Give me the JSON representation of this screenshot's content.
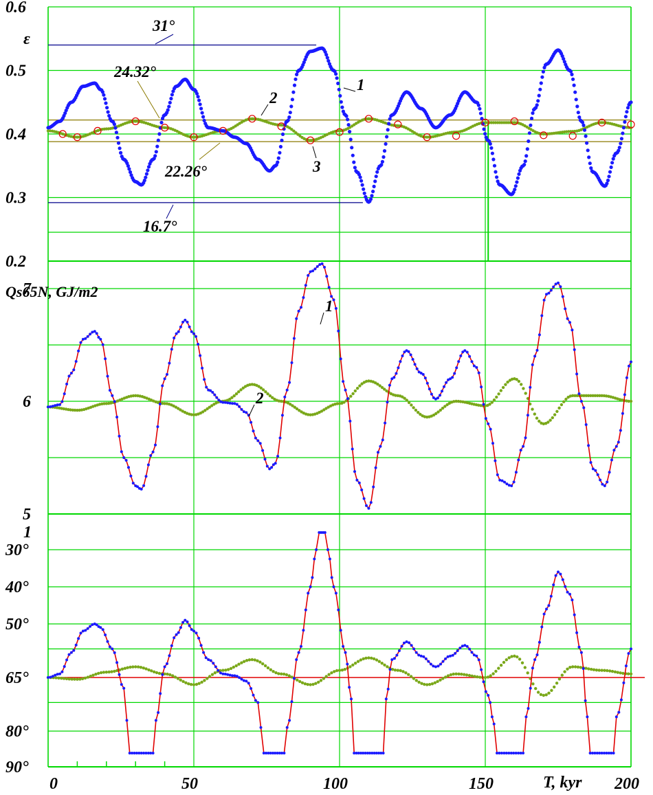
{
  "colors": {
    "grid": "#00d800",
    "curve1": "#1a1aff",
    "curve1_line": "#e00000",
    "curve2": "#7aa81a",
    "curve3_marker": "#e00000",
    "ref_line_red": "#e00000",
    "leader_blue": "#00008b",
    "leader_olive": "#8b7a00"
  },
  "chart_data": [
    {
      "type": "line",
      "panel": "top",
      "ylabel": "ε",
      "y_ticks": [
        "0.6",
        "0.5",
        "0.4",
        "0.3",
        "0.2"
      ],
      "ylim": [
        0.2,
        0.6
      ],
      "xlim": [
        0,
        200
      ],
      "grid": true,
      "series": [
        {
          "name": "1",
          "x": [
            0,
            4,
            8,
            12,
            16,
            18,
            22,
            26,
            30,
            32,
            36,
            40,
            44,
            47,
            50,
            55,
            60,
            64,
            68,
            72,
            76,
            78,
            82,
            86,
            90,
            94,
            98,
            102,
            106,
            110,
            114,
            118,
            123,
            128,
            133,
            138,
            143,
            147,
            151,
            155,
            159,
            163,
            167,
            171,
            175,
            179,
            183,
            187,
            191,
            195,
            200
          ],
          "values": [
            0.41,
            0.42,
            0.45,
            0.475,
            0.48,
            0.47,
            0.42,
            0.36,
            0.325,
            0.32,
            0.36,
            0.43,
            0.475,
            0.486,
            0.47,
            0.41,
            0.405,
            0.395,
            0.385,
            0.36,
            0.342,
            0.35,
            0.42,
            0.5,
            0.53,
            0.535,
            0.5,
            0.43,
            0.34,
            0.293,
            0.35,
            0.43,
            0.466,
            0.44,
            0.41,
            0.43,
            0.466,
            0.45,
            0.39,
            0.32,
            0.305,
            0.35,
            0.44,
            0.51,
            0.532,
            0.5,
            0.42,
            0.34,
            0.318,
            0.37,
            0.45
          ]
        },
        {
          "name": "2",
          "x": [
            0,
            10,
            20,
            30,
            40,
            50,
            60,
            70,
            80,
            90,
            100,
            110,
            120,
            130,
            140,
            150,
            160,
            170,
            180,
            190,
            200
          ],
          "values": [
            0.405,
            0.395,
            0.408,
            0.42,
            0.41,
            0.395,
            0.405,
            0.424,
            0.414,
            0.39,
            0.405,
            0.424,
            0.413,
            0.395,
            0.403,
            0.418,
            0.418,
            0.4,
            0.404,
            0.418,
            0.41
          ]
        },
        {
          "name": "3",
          "x": [
            5,
            10,
            17,
            30,
            40,
            50,
            60,
            70,
            80,
            90,
            100,
            110,
            120,
            130,
            140,
            150,
            160,
            170,
            180,
            190,
            200
          ],
          "values": [
            0.4,
            0.395,
            0.405,
            0.42,
            0.41,
            0.395,
            0.405,
            0.424,
            0.412,
            0.39,
            0.403,
            0.424,
            0.415,
            0.395,
            0.397,
            0.418,
            0.42,
            0.398,
            0.397,
            0.418,
            0.415
          ]
        }
      ],
      "reference_lines": [
        {
          "label": "31°",
          "y": 0.54,
          "x_range": [
            0,
            92
          ]
        },
        {
          "label": "24.32°",
          "y": 0.422,
          "x_range": [
            0,
            200
          ]
        },
        {
          "label": "22.26°",
          "y": 0.388,
          "x_range": [
            0,
            200
          ]
        },
        {
          "label": "16.7°",
          "y": 0.292,
          "x_range": [
            0,
            108
          ]
        }
      ]
    },
    {
      "type": "line",
      "panel": "middle",
      "ylabel": "Qs65N, GJ/m2",
      "y_ticks": [
        "7",
        "6",
        "5"
      ],
      "ylim": [
        5,
        8
      ],
      "xlim": [
        0,
        200
      ],
      "grid": true,
      "series": [
        {
          "name": "1",
          "x": [
            0,
            4,
            8,
            12,
            16,
            18,
            22,
            26,
            30,
            32,
            36,
            40,
            44,
            47,
            50,
            55,
            60,
            64,
            68,
            72,
            76,
            78,
            82,
            86,
            90,
            94,
            98,
            102,
            106,
            110,
            114,
            118,
            123,
            128,
            133,
            138,
            143,
            147,
            151,
            155,
            159,
            163,
            167,
            171,
            175,
            179,
            183,
            187,
            191,
            195,
            200
          ],
          "values": [
            5.95,
            5.97,
            6.25,
            6.55,
            6.62,
            6.55,
            6.05,
            5.5,
            5.25,
            5.22,
            5.55,
            6.2,
            6.6,
            6.72,
            6.6,
            6.1,
            5.99,
            5.98,
            5.9,
            5.65,
            5.4,
            5.45,
            6.1,
            6.8,
            7.15,
            7.22,
            6.9,
            6.1,
            5.3,
            5.05,
            5.6,
            6.2,
            6.45,
            6.25,
            6.02,
            6.2,
            6.45,
            6.3,
            5.8,
            5.3,
            5.25,
            5.6,
            6.4,
            6.95,
            7.05,
            6.7,
            6.0,
            5.4,
            5.25,
            5.6,
            6.35
          ]
        },
        {
          "name": "2",
          "x": [
            0,
            10,
            20,
            30,
            40,
            50,
            60,
            70,
            80,
            90,
            100,
            110,
            120,
            130,
            140,
            150,
            160,
            170,
            180,
            190,
            200
          ],
          "values": [
            5.95,
            5.92,
            5.98,
            6.05,
            5.98,
            5.88,
            6.0,
            6.15,
            6.0,
            5.88,
            5.98,
            6.18,
            6.05,
            5.86,
            6.0,
            5.96,
            6.2,
            5.8,
            6.05,
            6.05,
            6.0
          ]
        }
      ]
    },
    {
      "type": "line",
      "panel": "bottom",
      "ylabel": "1",
      "y_ticks": [
        "30°",
        "40°",
        "50°",
        "65°",
        "80°",
        "90°"
      ],
      "xlim": [
        0,
        200
      ],
      "xlabel": "T, kyr",
      "x_ticks": [
        "0",
        "50",
        "100",
        "150",
        "200"
      ],
      "grid": true,
      "reference_line": "65°",
      "series": [
        {
          "name": "1",
          "x": [
            0,
            4,
            8,
            12,
            16,
            18,
            22,
            26,
            27,
            28,
            36,
            37,
            40,
            44,
            47,
            50,
            55,
            60,
            64,
            68,
            72,
            73,
            74,
            81,
            82,
            86,
            90,
            92,
            93,
            95,
            96,
            98,
            102,
            104,
            105,
            115,
            116,
            118,
            123,
            128,
            133,
            138,
            143,
            147,
            151,
            153,
            154,
            163,
            164,
            167,
            171,
            175,
            179,
            183,
            185,
            186,
            194,
            195,
            200
          ],
          "values": [
            65,
            64,
            58,
            52,
            50,
            51,
            57,
            68,
            77,
            86,
            86,
            77,
            62,
            53,
            49,
            52,
            60,
            64,
            64.5,
            66,
            72,
            79,
            86,
            86,
            79,
            58,
            40,
            30,
            27,
            27,
            30,
            40,
            58,
            71,
            86,
            86,
            71,
            60,
            55,
            59,
            62,
            59,
            56,
            59,
            70,
            78,
            86,
            86,
            76,
            60,
            46,
            36,
            42,
            58,
            76,
            86,
            86,
            76,
            57
          ]
        },
        {
          "name": "2",
          "x": [
            0,
            10,
            20,
            30,
            40,
            50,
            60,
            70,
            80,
            90,
            100,
            110,
            120,
            130,
            140,
            150,
            160,
            170,
            180,
            190,
            200
          ],
          "values": [
            65,
            65.5,
            63.5,
            62,
            64,
            67,
            63,
            60,
            64,
            67,
            63,
            59.5,
            63,
            67,
            64,
            65,
            59,
            70,
            62,
            63,
            64
          ]
        }
      ]
    }
  ]
}
